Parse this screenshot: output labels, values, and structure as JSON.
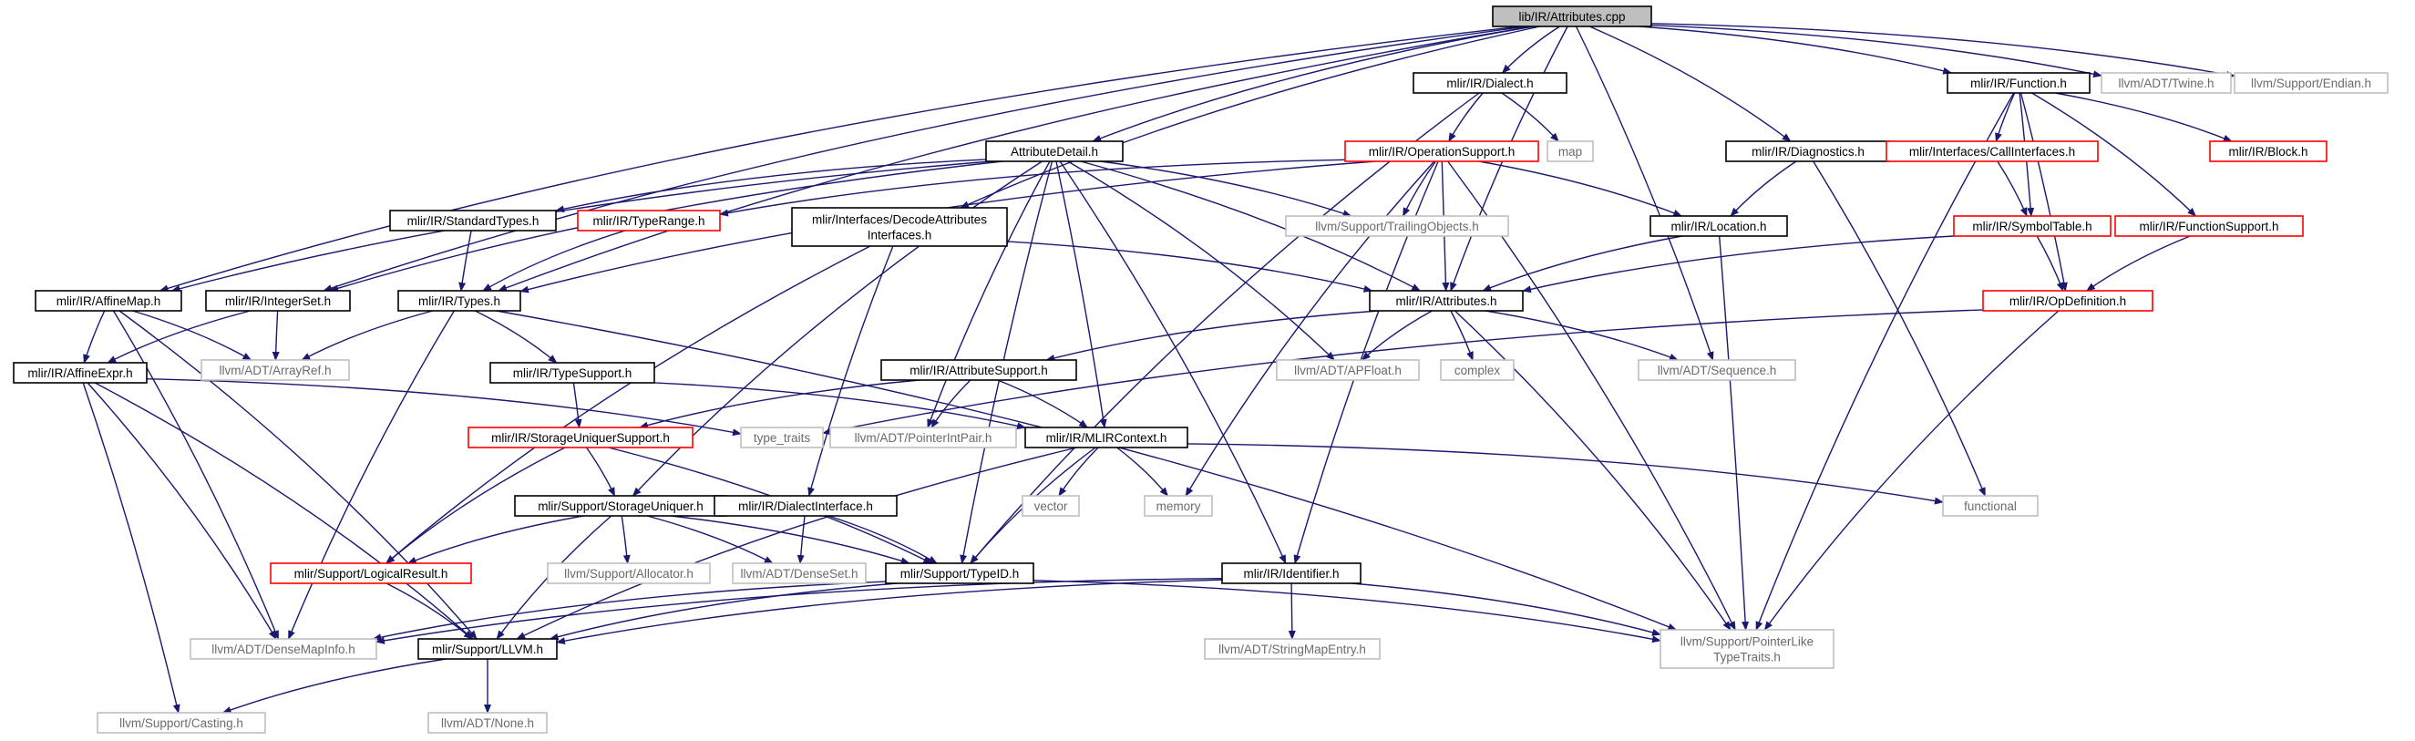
{
  "colors": {
    "edge": "#191970",
    "root_fill": "#bfbfbf",
    "normal_border": "#000000",
    "linked_border": "#ff0000",
    "external_border": "#bfbfbf",
    "external_text": "#6b6b6b",
    "text": "#000000"
  },
  "nodes": [
    {
      "id": "root",
      "label": "lib/IR/Attributes.cpp",
      "style": "root"
    },
    {
      "id": "dialect",
      "label": "mlir/IR/Dialect.h",
      "style": "normal"
    },
    {
      "id": "function",
      "label": "mlir/IR/Function.h",
      "style": "normal"
    },
    {
      "id": "twine",
      "label": "llvm/ADT/Twine.h",
      "style": "external"
    },
    {
      "id": "endian",
      "label": "llvm/Support/Endian.h",
      "style": "external"
    },
    {
      "id": "map",
      "label": "map",
      "style": "external"
    },
    {
      "id": "attrdetail",
      "label": "AttributeDetail.h",
      "style": "normal"
    },
    {
      "id": "opsupport",
      "label": "mlir/IR/OperationSupport.h",
      "style": "linked"
    },
    {
      "id": "diagnostics",
      "label": "mlir/IR/Diagnostics.h",
      "style": "normal"
    },
    {
      "id": "callinterfaces",
      "label": "mlir/Interfaces/CallInterfaces.h",
      "style": "linked"
    },
    {
      "id": "block",
      "label": "mlir/IR/Block.h",
      "style": "linked"
    },
    {
      "id": "standardtypes",
      "label": "mlir/IR/StandardTypes.h",
      "style": "normal"
    },
    {
      "id": "typerange",
      "label": "mlir/IR/TypeRange.h",
      "style": "linked"
    },
    {
      "id": "decodeattr",
      "label": "mlir/Interfaces/DecodeAttributes\nInterfaces.h",
      "style": "normal"
    },
    {
      "id": "trailingobjects",
      "label": "llvm/Support/TrailingObjects.h",
      "style": "external"
    },
    {
      "id": "location",
      "label": "mlir/IR/Location.h",
      "style": "normal"
    },
    {
      "id": "symboltable",
      "label": "mlir/IR/SymbolTable.h",
      "style": "linked"
    },
    {
      "id": "functionsupport",
      "label": "mlir/IR/FunctionSupport.h",
      "style": "linked"
    },
    {
      "id": "affinemap",
      "label": "mlir/IR/AffineMap.h",
      "style": "normal"
    },
    {
      "id": "integerset",
      "label": "mlir/IR/IntegerSet.h",
      "style": "normal"
    },
    {
      "id": "types",
      "label": "mlir/IR/Types.h",
      "style": "normal"
    },
    {
      "id": "attributes",
      "label": "mlir/IR/Attributes.h",
      "style": "normal"
    },
    {
      "id": "opdefinition",
      "label": "mlir/IR/OpDefinition.h",
      "style": "linked"
    },
    {
      "id": "affineexpr",
      "label": "mlir/IR/AffineExpr.h",
      "style": "normal"
    },
    {
      "id": "arrayref",
      "label": "llvm/ADT/ArrayRef.h",
      "style": "external"
    },
    {
      "id": "typesupport",
      "label": "mlir/IR/TypeSupport.h",
      "style": "normal"
    },
    {
      "id": "attrsupport",
      "label": "mlir/IR/AttributeSupport.h",
      "style": "normal"
    },
    {
      "id": "apfloat",
      "label": "llvm/ADT/APFloat.h",
      "style": "external"
    },
    {
      "id": "complex",
      "label": "complex",
      "style": "external"
    },
    {
      "id": "sequence",
      "label": "llvm/ADT/Sequence.h",
      "style": "external"
    },
    {
      "id": "typetraits",
      "label": "type_traits",
      "style": "external"
    },
    {
      "id": "storageuniqsupport",
      "label": "mlir/IR/StorageUniquerSupport.h",
      "style": "linked"
    },
    {
      "id": "pointerintpair",
      "label": "llvm/ADT/PointerIntPair.h",
      "style": "external"
    },
    {
      "id": "mlircontext",
      "label": "mlir/IR/MLIRContext.h",
      "style": "normal"
    },
    {
      "id": "storageuniquer",
      "label": "mlir/Support/StorageUniquer.h",
      "style": "normal"
    },
    {
      "id": "dialectinterface",
      "label": "mlir/IR/DialectInterface.h",
      "style": "normal"
    },
    {
      "id": "vector",
      "label": "vector",
      "style": "external"
    },
    {
      "id": "memory",
      "label": "memory",
      "style": "external"
    },
    {
      "id": "functional",
      "label": "functional",
      "style": "external"
    },
    {
      "id": "logicalresult",
      "label": "mlir/Support/LogicalResult.h",
      "style": "linked"
    },
    {
      "id": "allocator",
      "label": "llvm/Support/Allocator.h",
      "style": "external"
    },
    {
      "id": "denseset",
      "label": "llvm/ADT/DenseSet.h",
      "style": "external"
    },
    {
      "id": "typeid",
      "label": "mlir/Support/TypeID.h",
      "style": "normal"
    },
    {
      "id": "identifier",
      "label": "mlir/IR/Identifier.h",
      "style": "normal"
    },
    {
      "id": "densemapinfo",
      "label": "llvm/ADT/DenseMapInfo.h",
      "style": "external"
    },
    {
      "id": "llvmh",
      "label": "mlir/Support/LLVM.h",
      "style": "normal"
    },
    {
      "id": "stringmapentry",
      "label": "llvm/ADT/StringMapEntry.h",
      "style": "external"
    },
    {
      "id": "pointerlike",
      "label": "llvm/Support/PointerLike\nTypeTraits.h",
      "style": "external"
    },
    {
      "id": "casting",
      "label": "llvm/Support/Casting.h",
      "style": "external"
    },
    {
      "id": "none",
      "label": "llvm/ADT/None.h",
      "style": "external"
    }
  ],
  "edges": [
    [
      "root",
      "dialect"
    ],
    [
      "root",
      "function"
    ],
    [
      "root",
      "twine"
    ],
    [
      "root",
      "endian"
    ],
    [
      "root",
      "attrdetail"
    ],
    [
      "root",
      "diagnostics"
    ],
    [
      "root",
      "decodeattr"
    ],
    [
      "root",
      "affinemap"
    ],
    [
      "root",
      "integerset"
    ],
    [
      "root",
      "types"
    ],
    [
      "root",
      "attributes"
    ],
    [
      "root",
      "sequence"
    ],
    [
      "dialect",
      "opsupport"
    ],
    [
      "dialect",
      "map"
    ],
    [
      "dialect",
      "typeid"
    ],
    [
      "function",
      "callinterfaces"
    ],
    [
      "function",
      "block"
    ],
    [
      "function",
      "symboltable"
    ],
    [
      "function",
      "functionsupport"
    ],
    [
      "function",
      "opdefinition"
    ],
    [
      "function",
      "pointerlike"
    ],
    [
      "attrdetail",
      "standardtypes"
    ],
    [
      "attrdetail",
      "trailingobjects"
    ],
    [
      "attrdetail",
      "affinemap"
    ],
    [
      "attrdetail",
      "integerset"
    ],
    [
      "attrdetail",
      "attributes"
    ],
    [
      "attrdetail",
      "apfloat"
    ],
    [
      "attrdetail",
      "pointerintpair"
    ],
    [
      "attrdetail",
      "mlircontext"
    ],
    [
      "attrdetail",
      "storageuniquer"
    ],
    [
      "attrdetail",
      "identifier"
    ],
    [
      "attrdetail",
      "typeid"
    ],
    [
      "opsupport",
      "typerange"
    ],
    [
      "opsupport",
      "types"
    ],
    [
      "opsupport",
      "trailingobjects"
    ],
    [
      "opsupport",
      "location"
    ],
    [
      "opsupport",
      "attributes"
    ],
    [
      "opsupport",
      "memory"
    ],
    [
      "opsupport",
      "identifier"
    ],
    [
      "opsupport",
      "pointerlike"
    ],
    [
      "diagnostics",
      "location"
    ],
    [
      "diagnostics",
      "functional"
    ],
    [
      "callinterfaces",
      "symboltable"
    ],
    [
      "symboltable",
      "opdefinition"
    ],
    [
      "symboltable",
      "attributes"
    ],
    [
      "functionsupport",
      "opdefinition"
    ],
    [
      "opdefinition",
      "typetraits"
    ],
    [
      "opdefinition",
      "pointerlike"
    ],
    [
      "standardtypes",
      "types"
    ],
    [
      "typerange",
      "types"
    ],
    [
      "decodeattr",
      "attributes"
    ],
    [
      "decodeattr",
      "dialectinterface"
    ],
    [
      "decodeattr",
      "logicalresult"
    ],
    [
      "location",
      "attributes"
    ],
    [
      "location",
      "pointerlike"
    ],
    [
      "affinemap",
      "affineexpr"
    ],
    [
      "affinemap",
      "arrayref"
    ],
    [
      "affinemap",
      "densemapinfo"
    ],
    [
      "affinemap",
      "llvmh"
    ],
    [
      "integerset",
      "affineexpr"
    ],
    [
      "integerset",
      "arrayref"
    ],
    [
      "types",
      "arrayref"
    ],
    [
      "types",
      "typesupport"
    ],
    [
      "types",
      "densemapinfo"
    ],
    [
      "types",
      "pointerlike"
    ],
    [
      "attributes",
      "attrsupport"
    ],
    [
      "attributes",
      "apfloat"
    ],
    [
      "attributes",
      "complex"
    ],
    [
      "attributes",
      "sequence"
    ],
    [
      "attributes",
      "pointerlike"
    ],
    [
      "affineexpr",
      "typetraits"
    ],
    [
      "affineexpr",
      "casting"
    ],
    [
      "affineexpr",
      "densemapinfo"
    ],
    [
      "affineexpr",
      "llvmh"
    ],
    [
      "typesupport",
      "storageuniqsupport"
    ],
    [
      "typesupport",
      "mlircontext"
    ],
    [
      "attrsupport",
      "storageuniqsupport"
    ],
    [
      "attrsupport",
      "pointerintpair"
    ],
    [
      "attrsupport",
      "mlircontext"
    ],
    [
      "storageuniqsupport",
      "storageuniquer"
    ],
    [
      "storageuniqsupport",
      "logicalresult"
    ],
    [
      "storageuniqsupport",
      "typeid"
    ],
    [
      "mlircontext",
      "vector"
    ],
    [
      "mlircontext",
      "memory"
    ],
    [
      "mlircontext",
      "functional"
    ],
    [
      "mlircontext",
      "typeid"
    ],
    [
      "mlircontext",
      "llvmh"
    ],
    [
      "storageuniquer",
      "logicalresult"
    ],
    [
      "storageuniquer",
      "allocator"
    ],
    [
      "storageuniquer",
      "denseset"
    ],
    [
      "storageuniquer",
      "typeid"
    ],
    [
      "storageuniquer",
      "llvmh"
    ],
    [
      "dialectinterface",
      "denseset"
    ],
    [
      "dialectinterface",
      "typeid"
    ],
    [
      "logicalresult",
      "llvmh"
    ],
    [
      "typeid",
      "densemapinfo"
    ],
    [
      "typeid",
      "llvmh"
    ],
    [
      "typeid",
      "pointerlike"
    ],
    [
      "identifier",
      "densemapinfo"
    ],
    [
      "identifier",
      "llvmh"
    ],
    [
      "identifier",
      "stringmapentry"
    ],
    [
      "identifier",
      "pointerlike"
    ],
    [
      "llvmh",
      "casting"
    ],
    [
      "llvmh",
      "none"
    ]
  ]
}
